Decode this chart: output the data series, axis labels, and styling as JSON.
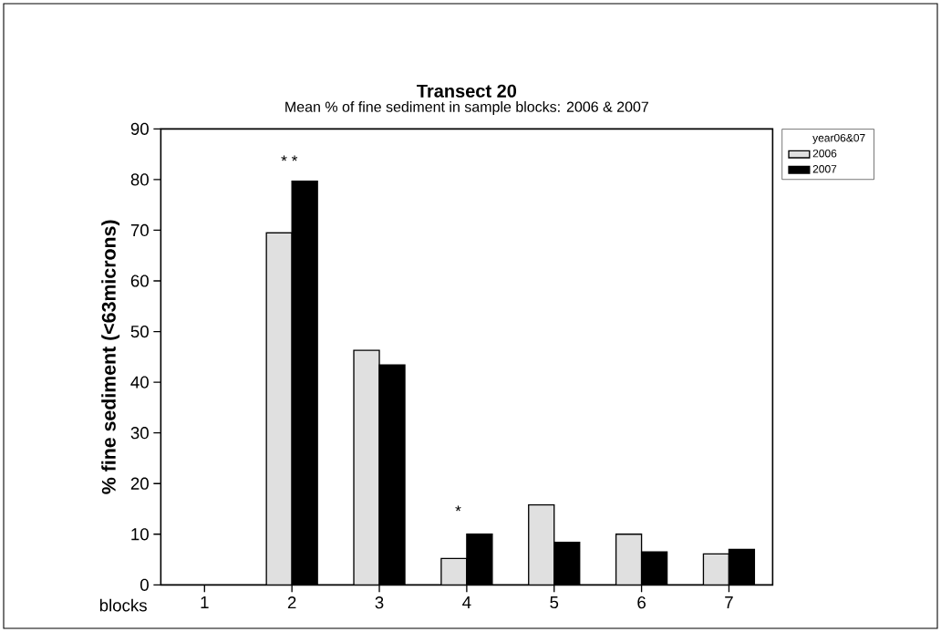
{
  "chart_data": {
    "type": "bar",
    "title": "Transect 20",
    "subtitle": "Mean % of fine sediment in sample blocks: 2006 & 2007",
    "xlabel": "blocks",
    "ylabel": "% fine sediment (<63microns)",
    "legend_title": "year06&07",
    "categories": [
      "1",
      "2",
      "3",
      "4",
      "5",
      "6",
      "7"
    ],
    "series": [
      {
        "name": "2006",
        "color": "#e0e0e0",
        "values": [
          null,
          69.5,
          46.3,
          5.2,
          15.8,
          10.0,
          6.1
        ]
      },
      {
        "name": "2007",
        "color": "#000000",
        "values": [
          null,
          79.7,
          43.4,
          10.0,
          8.4,
          6.5,
          7.0
        ]
      }
    ],
    "ylim": [
      0,
      90
    ],
    "yticks": [
      0,
      10,
      20,
      30,
      40,
      50,
      60,
      70,
      80,
      90
    ],
    "annotations": [
      "* *",
      "*"
    ],
    "legend": "top right",
    "grid": false
  }
}
